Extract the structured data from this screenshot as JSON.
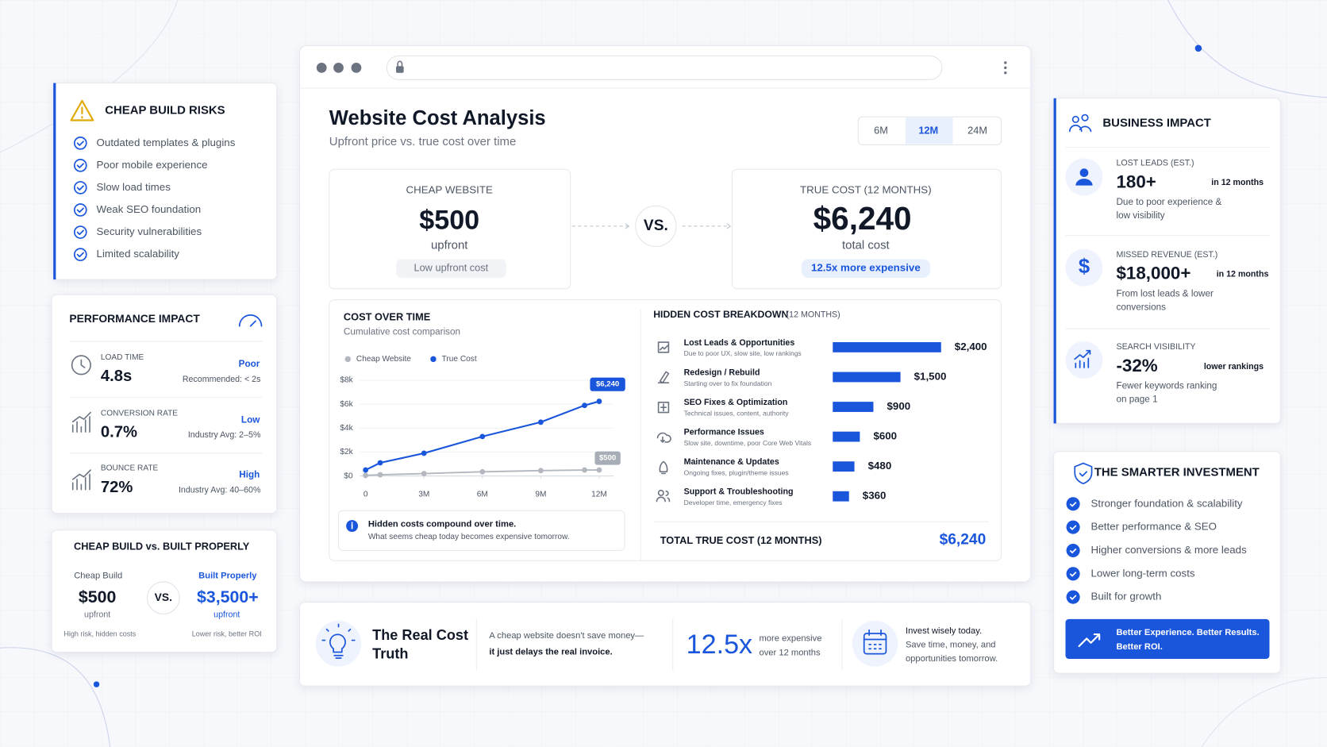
{
  "risks": {
    "title": "CHEAP BUILD RISKS",
    "items": [
      "Outdated templates & plugins",
      "Poor mobile experience",
      "Slow load times",
      "Weak SEO foundation",
      "Security vulnerabilities",
      "Limited scalability"
    ]
  },
  "performance": {
    "title": "PERFORMANCE IMPACT",
    "metrics": [
      {
        "label": "LOAD TIME",
        "value": "4.8s",
        "status": "Poor",
        "note": "Recommended: < 2s"
      },
      {
        "label": "CONVERSION RATE",
        "value": "0.7%",
        "status": "Low",
        "note": "Industry Avg: 2–5%"
      },
      {
        "label": "BOUNCE RATE",
        "value": "72%",
        "status": "High",
        "note": "Industry Avg: 40–60%"
      }
    ]
  },
  "comparison": {
    "title": "CHEAP BUILD vs. BUILT PROPERLY",
    "vs": "VS.",
    "left": {
      "label": "Cheap Build",
      "price": "$500",
      "sub": "upfront",
      "note": "High risk, hidden costs"
    },
    "right": {
      "label": "Built Properly",
      "price": "$3,500+",
      "sub": "upfront",
      "note": "Lower risk, better ROI"
    }
  },
  "main": {
    "title": "Website Cost Analysis",
    "subtitle": "Upfront price vs. true cost over time",
    "periods": [
      "6M",
      "12M",
      "24M"
    ],
    "vs": "VS.",
    "cheap": {
      "label": "CHEAP WEBSITE",
      "price": "$500",
      "unit": "upfront",
      "tag": "Low upfront cost"
    },
    "true_cost": {
      "label": "TRUE COST (12 MONTHS)",
      "price": "$6,240",
      "unit": "total cost",
      "tag": "12.5x more expensive"
    }
  },
  "cost_over_time": {
    "type": "line",
    "title": "COST OVER TIME",
    "subtitle": "Cumulative cost comparison",
    "x": [
      0,
      0.75,
      3,
      6,
      9,
      11.25,
      12
    ],
    "series": [
      {
        "name": "Cheap Website",
        "color": "#b3b8c0",
        "values": [
          50,
          100,
          200,
          350,
          450,
          500,
          500
        ],
        "value_labels": [
          null,
          null,
          null,
          null,
          null,
          null,
          "$500"
        ]
      },
      {
        "name": "True Cost",
        "color": "#1a56db",
        "values": [
          500,
          1100,
          1900,
          3300,
          4500,
          5900,
          6240
        ],
        "value_labels": [
          null,
          null,
          null,
          null,
          null,
          null,
          "$6,240"
        ]
      }
    ],
    "xlim": [
      0,
      12
    ],
    "ylim": [
      0,
      8000
    ],
    "xticks": [
      0,
      {
        "value": 3,
        "label": "3M"
      },
      {
        "value": 6,
        "label": "6M"
      },
      {
        "value": 9,
        "label": "9M"
      },
      {
        "value": 12,
        "label": "12M"
      }
    ],
    "yticks": [
      {
        "value": 0,
        "label": "$0"
      },
      {
        "value": 2000,
        "label": "$2k"
      },
      {
        "value": 4000,
        "label": "$4k"
      },
      {
        "value": 6000,
        "label": "$6k"
      },
      {
        "value": 8000,
        "label": "$8k"
      }
    ],
    "note_title": "Hidden costs compound over time.",
    "note_text": "What seems cheap today becomes expensive tomorrow."
  },
  "hidden_costs": {
    "type": "bar",
    "title": "HIDDEN COST BREAKDOWN",
    "title_suffix": "(12 MONTHS)",
    "categories": [
      "Lost Leads & Opportunities",
      "Redesign / Rebuild",
      "SEO Fixes & Optimization",
      "Performance Issues",
      "Maintenance & Updates",
      "Support & Troubleshooting"
    ],
    "descriptions": [
      "Due to poor UX, slow site, low rankings",
      "Starting over to fix foundation",
      "Technical issues, content, authority",
      "Slow site, downtime, poor Core Web Vitals",
      "Ongoing fixes, plugin/theme issues",
      "Developer time, emergency fixes"
    ],
    "values": [
      2400,
      1500,
      900,
      600,
      480,
      360
    ],
    "value_labels": [
      "$2,400",
      "$1,500",
      "$900",
      "$600",
      "$480",
      "$360"
    ],
    "color": "#1a56db",
    "total_label": "TOTAL TRUE COST (12 MONTHS)",
    "total_value": "$6,240"
  },
  "truth": {
    "title_lines": [
      "The Real Cost",
      "Truth"
    ],
    "text_lines": [
      "A cheap website doesn't save money—",
      "it just delays the real invoice."
    ],
    "multiplier": "12.5x",
    "multiplier_lines": [
      "more expensive",
      "over 12 months"
    ],
    "invest_lines": [
      "Invest wisely today.",
      "Save time, money, and",
      "opportunities tomorrow."
    ]
  },
  "business": {
    "title": "BUSINESS IMPACT",
    "items": [
      {
        "label": "LOST LEADS (EST.)",
        "value": "180+",
        "period": "in 12 months",
        "note_lines": [
          "Due to poor experience &",
          "low visibility"
        ]
      },
      {
        "label": "MISSED REVENUE (EST.)",
        "value": "$18,000+",
        "period": "in 12 months",
        "note_lines": [
          "From lost leads & lower",
          "conversions"
        ]
      },
      {
        "label": "SEARCH VISIBILITY",
        "value": "-32%",
        "period": "lower rankings",
        "note_lines": [
          "Fewer keywords ranking",
          "on page 1"
        ]
      }
    ]
  },
  "smarter": {
    "title": "THE SMARTER INVESTMENT",
    "items": [
      "Stronger foundation & scalability",
      "Better performance & SEO",
      "Higher conversions & more leads",
      "Lower long-term costs",
      "Built for growth"
    ],
    "button_lines": [
      "Better Experience. Better Results.",
      "Better ROI."
    ]
  }
}
